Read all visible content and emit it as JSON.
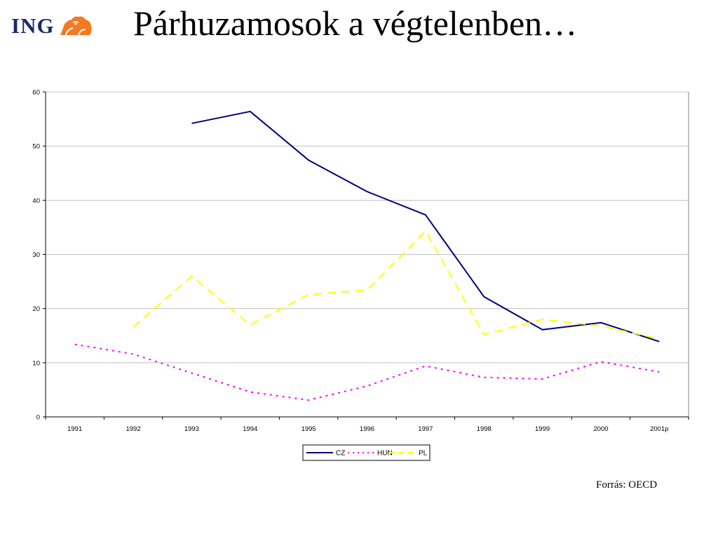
{
  "slide": {
    "logo_text": "ING",
    "logo_icon": "lion-icon",
    "title": "Párhuzamosok a végtelenben…",
    "source": "Forrás: OECD"
  },
  "chart_data": {
    "type": "line",
    "categories": [
      "1991",
      "1992",
      "1993",
      "1994",
      "1995",
      "1996",
      "1997",
      "1998",
      "1999",
      "2000",
      "2001p"
    ],
    "ylim": [
      0,
      60
    ],
    "yticks": [
      0,
      10,
      20,
      30,
      40,
      50,
      60
    ],
    "grid": true,
    "legend_position": "bottom-center",
    "series": [
      {
        "name": "CZ",
        "color": "#000080",
        "style": "solid",
        "values": [
          null,
          null,
          54.2,
          56.4,
          47.4,
          41.6,
          37.3,
          22.2,
          16.1,
          17.4,
          13.9
        ]
      },
      {
        "name": "HUN",
        "color": "#ff00ff",
        "style": "dotted",
        "values": [
          13.4,
          11.6,
          8.1,
          4.6,
          3.1,
          5.7,
          9.4,
          7.3,
          7.0,
          10.2,
          8.3
        ]
      },
      {
        "name": "PL",
        "color": "#ffff00",
        "style": "dashed",
        "values": [
          null,
          16.6,
          26.0,
          17.0,
          22.6,
          23.4,
          34.3,
          15.2,
          18.0,
          16.8,
          14.4
        ]
      }
    ]
  }
}
